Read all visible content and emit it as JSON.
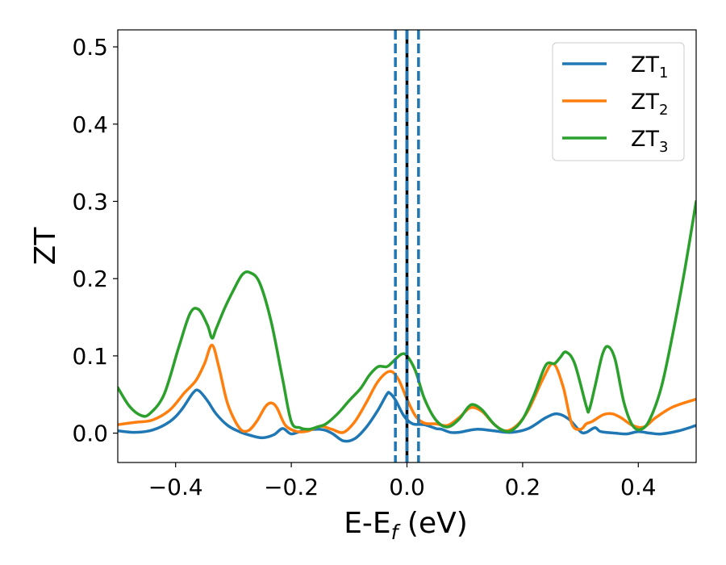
{
  "chart_data": {
    "type": "line",
    "xlabel": {
      "main": "E-E",
      "sub": "f",
      "unit": " (eV)"
    },
    "ylabel": "ZT",
    "xlim": [
      -0.5,
      0.5
    ],
    "ylim": [
      -0.038,
      0.522
    ],
    "xticks": [
      -0.4,
      -0.2,
      0.0,
      0.2,
      0.4
    ],
    "xtick_labels": [
      "−0.4",
      "−0.2",
      "0.0",
      "0.2",
      "0.4"
    ],
    "yticks": [
      0.0,
      0.1,
      0.2,
      0.3,
      0.4,
      0.5
    ],
    "ytick_labels": [
      "0.0",
      "0.1",
      "0.2",
      "0.3",
      "0.4",
      "0.5"
    ],
    "legend_position": "top-right",
    "vlines": [
      {
        "x": -0.02,
        "style": "dashed",
        "color": "#1f77b4"
      },
      {
        "x": 0.02,
        "style": "dashed",
        "color": "#1f77b4"
      },
      {
        "x": 0.0,
        "style": "solid",
        "color": "#000000"
      },
      {
        "x": 0.0,
        "style": "dashed",
        "color": "#1f77b4"
      }
    ],
    "series": [
      {
        "name": "ZT",
        "sub": "1",
        "color": "#1f77b4",
        "points": [
          [
            -0.5,
            0.003
          ],
          [
            -0.47,
            0.001
          ],
          [
            -0.44,
            0.004
          ],
          [
            -0.41,
            0.015
          ],
          [
            -0.39,
            0.03
          ],
          [
            -0.37,
            0.052
          ],
          [
            -0.36,
            0.055
          ],
          [
            -0.345,
            0.042
          ],
          [
            -0.33,
            0.025
          ],
          [
            -0.31,
            0.01
          ],
          [
            -0.29,
            0.002
          ],
          [
            -0.27,
            -0.003
          ],
          [
            -0.25,
            -0.006
          ],
          [
            -0.23,
            -0.002
          ],
          [
            -0.215,
            0.006
          ],
          [
            -0.2,
            -0.001
          ],
          [
            -0.18,
            0.003
          ],
          [
            -0.15,
            0.005
          ],
          [
            -0.13,
            0.0
          ],
          [
            -0.11,
            -0.01
          ],
          [
            -0.09,
            -0.007
          ],
          [
            -0.07,
            0.008
          ],
          [
            -0.05,
            0.03
          ],
          [
            -0.035,
            0.05
          ],
          [
            -0.03,
            0.052
          ],
          [
            -0.02,
            0.043
          ],
          [
            -0.005,
            0.022
          ],
          [
            0.01,
            0.012
          ],
          [
            0.03,
            0.011
          ],
          [
            0.05,
            0.006
          ],
          [
            0.06,
            0.005
          ],
          [
            0.075,
            0.001
          ],
          [
            0.09,
            0.001
          ],
          [
            0.12,
            0.005
          ],
          [
            0.15,
            0.003
          ],
          [
            0.18,
            0.001
          ],
          [
            0.21,
            0.006
          ],
          [
            0.24,
            0.02
          ],
          [
            0.26,
            0.025
          ],
          [
            0.28,
            0.018
          ],
          [
            0.3,
            0.002
          ],
          [
            0.31,
            0.001
          ],
          [
            0.325,
            0.007
          ],
          [
            0.335,
            0.002
          ],
          [
            0.36,
            0.0
          ],
          [
            0.38,
            -0.001
          ],
          [
            0.4,
            0.002
          ],
          [
            0.42,
            0.0
          ],
          [
            0.44,
            -0.001
          ],
          [
            0.47,
            0.003
          ],
          [
            0.5,
            0.01
          ]
        ]
      },
      {
        "name": "ZT",
        "sub": "2",
        "color": "#ff7f0e",
        "points": [
          [
            -0.5,
            0.011
          ],
          [
            -0.47,
            0.014
          ],
          [
            -0.44,
            0.017
          ],
          [
            -0.41,
            0.03
          ],
          [
            -0.385,
            0.052
          ],
          [
            -0.365,
            0.068
          ],
          [
            -0.35,
            0.09
          ],
          [
            -0.337,
            0.114
          ],
          [
            -0.325,
            0.085
          ],
          [
            -0.31,
            0.038
          ],
          [
            -0.29,
            0.007
          ],
          [
            -0.275,
            0.003
          ],
          [
            -0.26,
            0.015
          ],
          [
            -0.245,
            0.034
          ],
          [
            -0.235,
            0.039
          ],
          [
            -0.225,
            0.033
          ],
          [
            -0.21,
            0.01
          ],
          [
            -0.19,
            0.002
          ],
          [
            -0.17,
            0.003
          ],
          [
            -0.15,
            0.009
          ],
          [
            -0.13,
            0.005
          ],
          [
            -0.11,
            0.001
          ],
          [
            -0.09,
            0.015
          ],
          [
            -0.07,
            0.04
          ],
          [
            -0.05,
            0.067
          ],
          [
            -0.03,
            0.08
          ],
          [
            -0.015,
            0.07
          ],
          [
            0.0,
            0.044
          ],
          [
            0.015,
            0.022
          ],
          [
            0.03,
            0.013
          ],
          [
            0.05,
            0.012
          ],
          [
            0.07,
            0.01
          ],
          [
            0.09,
            0.02
          ],
          [
            0.11,
            0.033
          ],
          [
            0.13,
            0.028
          ],
          [
            0.15,
            0.012
          ],
          [
            0.17,
            0.003
          ],
          [
            0.19,
            0.01
          ],
          [
            0.21,
            0.03
          ],
          [
            0.235,
            0.07
          ],
          [
            0.253,
            0.09
          ],
          [
            0.27,
            0.06
          ],
          [
            0.285,
            0.012
          ],
          [
            0.3,
            0.005
          ],
          [
            0.31,
            0.012
          ],
          [
            0.32,
            0.015
          ],
          [
            0.34,
            0.024
          ],
          [
            0.355,
            0.025
          ],
          [
            0.37,
            0.02
          ],
          [
            0.39,
            0.01
          ],
          [
            0.41,
            0.008
          ],
          [
            0.43,
            0.02
          ],
          [
            0.46,
            0.034
          ],
          [
            0.5,
            0.044
          ]
        ]
      },
      {
        "name": "ZT",
        "sub": "3",
        "color": "#2ca02c",
        "points": [
          [
            -0.5,
            0.059
          ],
          [
            -0.48,
            0.035
          ],
          [
            -0.46,
            0.023
          ],
          [
            -0.445,
            0.025
          ],
          [
            -0.42,
            0.05
          ],
          [
            -0.395,
            0.11
          ],
          [
            -0.375,
            0.155
          ],
          [
            -0.36,
            0.16
          ],
          [
            -0.345,
            0.14
          ],
          [
            -0.337,
            0.123
          ],
          [
            -0.33,
            0.135
          ],
          [
            -0.315,
            0.162
          ],
          [
            -0.3,
            0.185
          ],
          [
            -0.285,
            0.205
          ],
          [
            -0.272,
            0.208
          ],
          [
            -0.255,
            0.195
          ],
          [
            -0.235,
            0.145
          ],
          [
            -0.215,
            0.07
          ],
          [
            -0.2,
            0.015
          ],
          [
            -0.185,
            0.007
          ],
          [
            -0.17,
            0.005
          ],
          [
            -0.155,
            0.008
          ],
          [
            -0.14,
            0.012
          ],
          [
            -0.12,
            0.025
          ],
          [
            -0.1,
            0.042
          ],
          [
            -0.08,
            0.058
          ],
          [
            -0.065,
            0.075
          ],
          [
            -0.05,
            0.086
          ],
          [
            -0.035,
            0.086
          ],
          [
            -0.025,
            0.092
          ],
          [
            -0.01,
            0.102
          ],
          [
            0.0,
            0.1
          ],
          [
            0.015,
            0.08
          ],
          [
            0.03,
            0.045
          ],
          [
            0.05,
            0.017
          ],
          [
            0.07,
            0.008
          ],
          [
            0.09,
            0.018
          ],
          [
            0.105,
            0.033
          ],
          [
            0.115,
            0.037
          ],
          [
            0.13,
            0.03
          ],
          [
            0.15,
            0.012
          ],
          [
            0.165,
            0.004
          ],
          [
            0.18,
            0.003
          ],
          [
            0.2,
            0.018
          ],
          [
            0.22,
            0.05
          ],
          [
            0.24,
            0.088
          ],
          [
            0.255,
            0.09
          ],
          [
            0.265,
            0.098
          ],
          [
            0.275,
            0.105
          ],
          [
            0.29,
            0.09
          ],
          [
            0.31,
            0.035
          ],
          [
            0.315,
            0.03
          ],
          [
            0.325,
            0.06
          ],
          [
            0.338,
            0.102
          ],
          [
            0.348,
            0.112
          ],
          [
            0.36,
            0.095
          ],
          [
            0.375,
            0.04
          ],
          [
            0.39,
            0.01
          ],
          [
            0.405,
            0.005
          ],
          [
            0.42,
            0.018
          ],
          [
            0.44,
            0.06
          ],
          [
            0.46,
            0.13
          ],
          [
            0.48,
            0.21
          ],
          [
            0.5,
            0.3
          ]
        ]
      }
    ]
  }
}
